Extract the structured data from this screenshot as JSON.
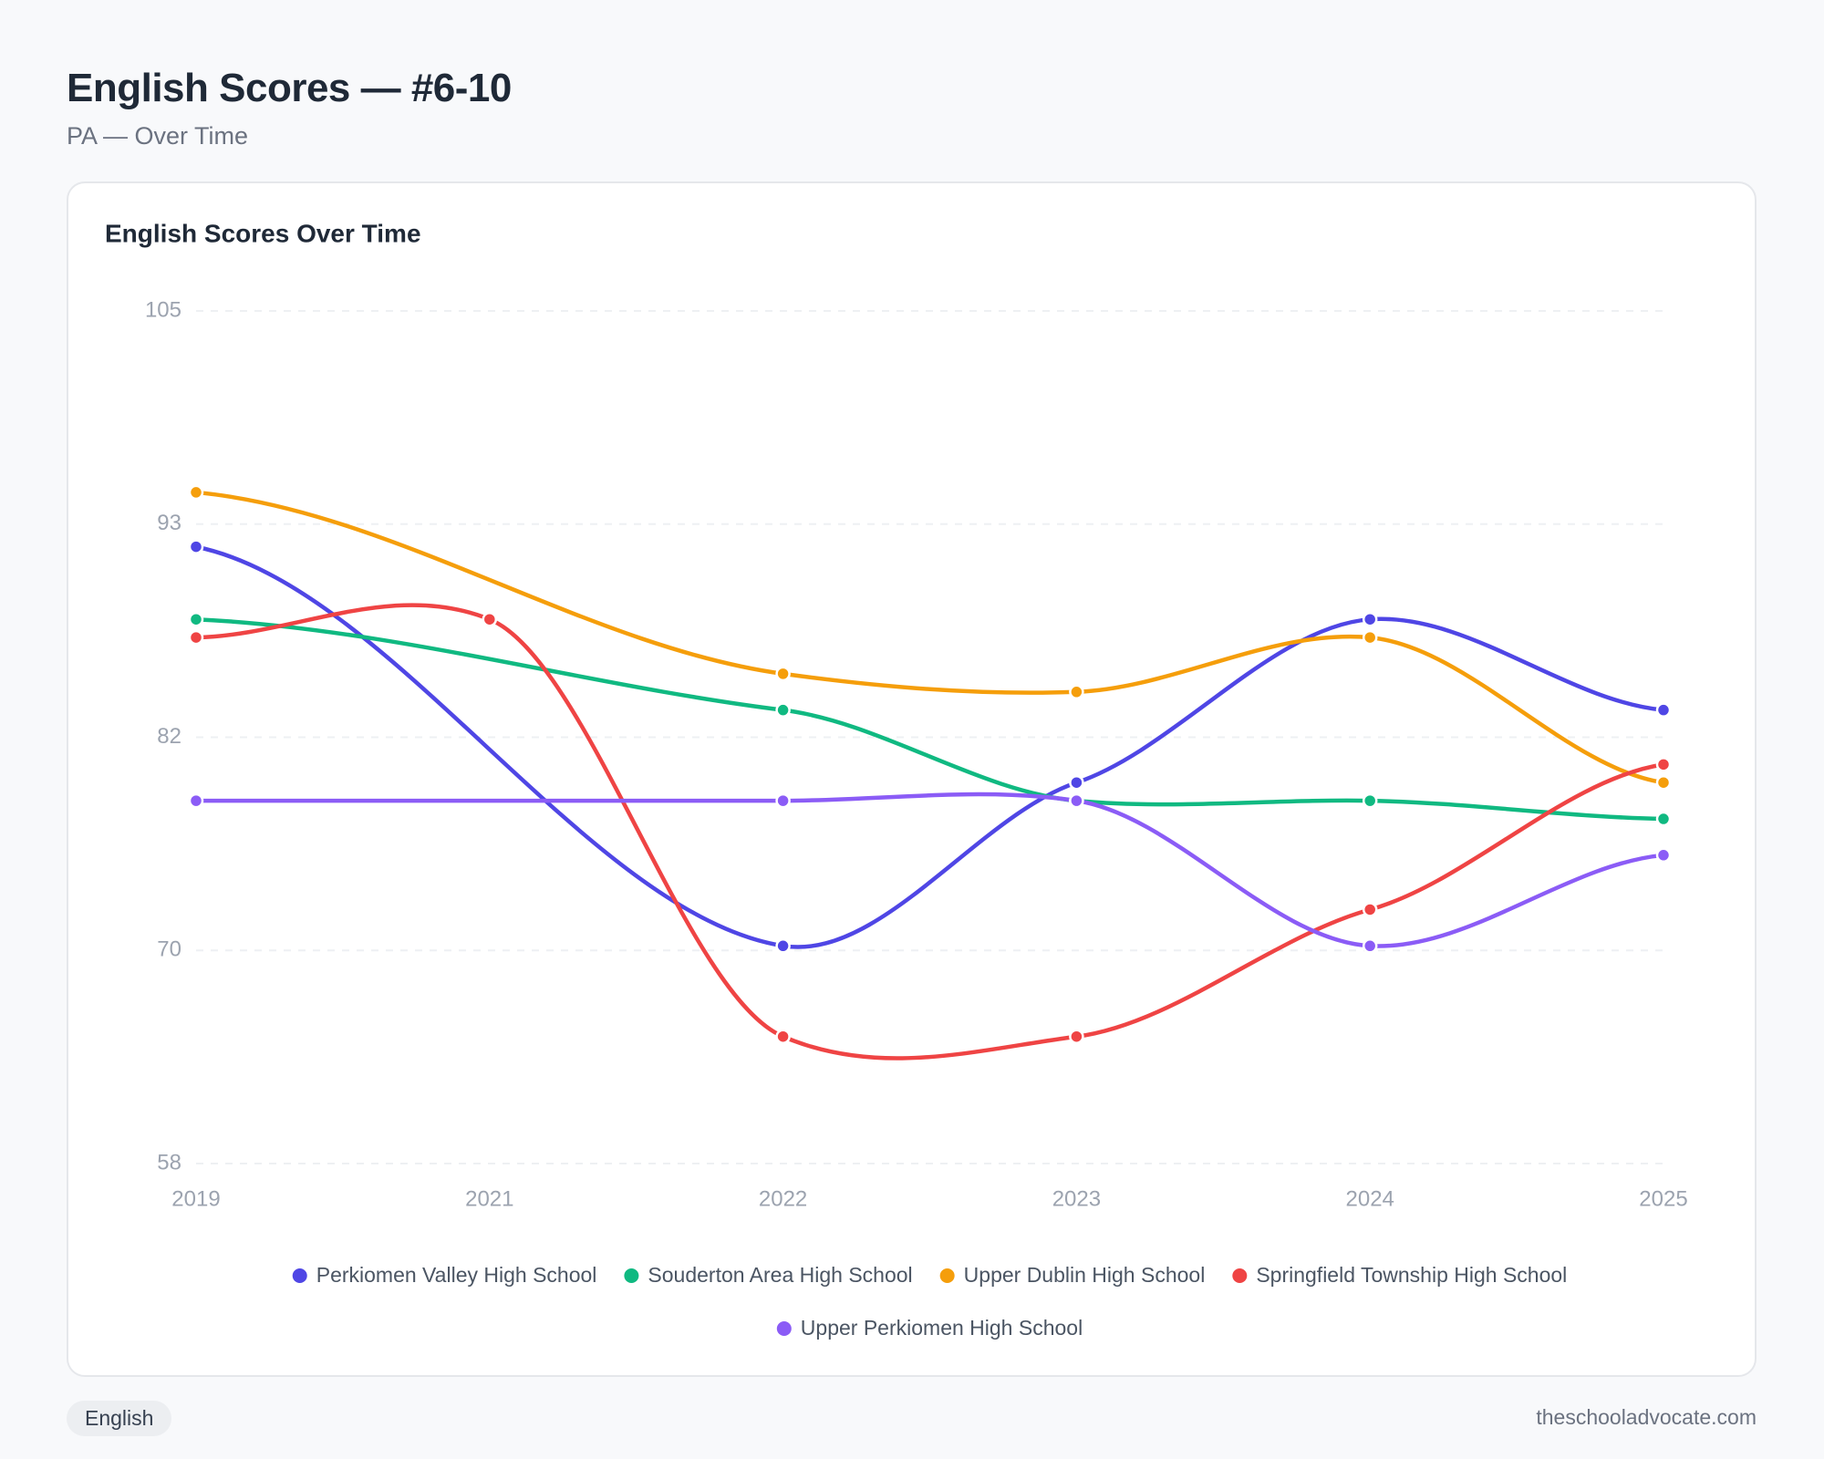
{
  "page": {
    "title": "English Scores — #6-10",
    "subtitle": "PA — Over Time",
    "tag": "English",
    "source": "theschooladvocate.com"
  },
  "chart_data": {
    "type": "line",
    "title": "English Scores Over Time",
    "categories": [
      "2019",
      "2021",
      "2022",
      "2023",
      "2024",
      "2025"
    ],
    "series": [
      {
        "name": "Perkiomen Valley High School",
        "color": "#4f46e5",
        "values": [
          92,
          null,
          70,
          79,
          88,
          83
        ]
      },
      {
        "name": "Souderton Area High School",
        "color": "#10b981",
        "values": [
          88,
          null,
          83,
          78,
          78,
          77
        ]
      },
      {
        "name": "Upper Dublin High School",
        "color": "#f59e0b",
        "values": [
          95,
          null,
          85,
          84,
          87,
          79
        ]
      },
      {
        "name": "Springfield Township High School",
        "color": "#ef4444",
        "values": [
          87,
          88,
          65,
          65,
          72,
          80
        ]
      },
      {
        "name": "Upper Perkiomen High School",
        "color": "#8b5cf6",
        "values": [
          78,
          null,
          78,
          78,
          70,
          75
        ]
      }
    ],
    "ylim": [
      58,
      105
    ],
    "yticks": [
      58,
      {
        "value": 69.75,
        "label": "70"
      },
      {
        "value": 81.5,
        "label": "82"
      },
      {
        "value": 93.25,
        "label": "93"
      },
      105
    ],
    "grid": true
  }
}
